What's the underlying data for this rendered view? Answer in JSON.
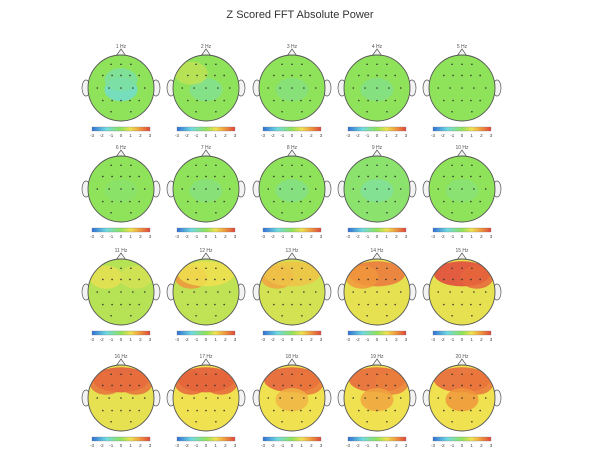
{
  "figure": {
    "title": "Z Scored FFT Absolute Power"
  },
  "chart_data": {
    "type": "heatmap",
    "title": "Z Scored FFT Absolute Power",
    "colorbar_ticks": [
      "-3",
      "-2",
      "-1",
      "0",
      "1",
      "2",
      "3"
    ],
    "colorbar_range": [
      -3,
      3
    ],
    "colors": {
      "low": "#2f6fd8",
      "mid": "#8fe35a",
      "high": "#e0453c",
      "head_outline": "#555555"
    },
    "maps": [
      {
        "label": "1 Hz",
        "base": 0.0,
        "blobs": [
          {
            "region": "center",
            "z": -1.3
          },
          {
            "region": "upper-center",
            "z": -0.8
          }
        ]
      },
      {
        "label": "2 Hz",
        "base": 0.0,
        "blobs": [
          {
            "region": "center",
            "z": -0.6
          },
          {
            "region": "front-left",
            "z": 0.5
          }
        ]
      },
      {
        "label": "3 Hz",
        "base": 0.0,
        "blobs": [
          {
            "region": "center",
            "z": -0.4
          }
        ]
      },
      {
        "label": "4 Hz",
        "base": 0.0,
        "blobs": [
          {
            "region": "center",
            "z": -0.5
          }
        ]
      },
      {
        "label": "5 Hz",
        "base": 0.0,
        "blobs": []
      },
      {
        "label": "6 Hz",
        "base": 0.0,
        "blobs": [
          {
            "region": "center",
            "z": -0.2
          }
        ]
      },
      {
        "label": "7 Hz",
        "base": 0.0,
        "blobs": [
          {
            "region": "center",
            "z": -0.4
          }
        ]
      },
      {
        "label": "8 Hz",
        "base": 0.0,
        "blobs": [
          {
            "region": "center",
            "z": -0.5
          }
        ]
      },
      {
        "label": "9 Hz",
        "base": -0.2,
        "blobs": [
          {
            "region": "center",
            "z": -0.7
          }
        ]
      },
      {
        "label": "10 Hz",
        "base": 0.0,
        "blobs": [
          {
            "region": "center",
            "z": -0.3
          }
        ]
      },
      {
        "label": "11 Hz",
        "base": 0.4,
        "blobs": [
          {
            "region": "front-left",
            "z": 0.9
          },
          {
            "region": "front-right",
            "z": 0.7
          }
        ]
      },
      {
        "label": "12 Hz",
        "base": 0.5,
        "blobs": [
          {
            "region": "front-left",
            "z": 2.0
          },
          {
            "region": "front",
            "z": 1.0
          }
        ]
      },
      {
        "label": "13 Hz",
        "base": 0.7,
        "blobs": [
          {
            "region": "front-left",
            "z": 1.8
          },
          {
            "region": "front",
            "z": 1.4
          }
        ]
      },
      {
        "label": "14 Hz",
        "base": 0.9,
        "blobs": [
          {
            "region": "front",
            "z": 2.4
          },
          {
            "region": "front-left",
            "z": 2.0
          }
        ]
      },
      {
        "label": "15 Hz",
        "base": 0.9,
        "blobs": [
          {
            "region": "front",
            "z": 3.0
          },
          {
            "region": "front-right",
            "z": 2.6
          }
        ]
      },
      {
        "label": "16 Hz",
        "base": 0.9,
        "blobs": [
          {
            "region": "front",
            "z": 2.8
          },
          {
            "region": "front-left",
            "z": 2.5
          },
          {
            "region": "front-right",
            "z": 2.5
          }
        ]
      },
      {
        "label": "17 Hz",
        "base": 1.0,
        "blobs": [
          {
            "region": "front",
            "z": 2.8
          },
          {
            "region": "front-left",
            "z": 2.6
          },
          {
            "region": "front-right",
            "z": 2.6
          }
        ]
      },
      {
        "label": "18 Hz",
        "base": 1.0,
        "blobs": [
          {
            "region": "front",
            "z": 2.7
          },
          {
            "region": "front-right",
            "z": 2.4
          },
          {
            "region": "center",
            "z": 1.6
          }
        ]
      },
      {
        "label": "19 Hz",
        "base": 1.0,
        "blobs": [
          {
            "region": "front",
            "z": 2.6
          },
          {
            "region": "front-right",
            "z": 2.3
          },
          {
            "region": "center",
            "z": 1.8
          }
        ]
      },
      {
        "label": "20 Hz",
        "base": 1.0,
        "blobs": [
          {
            "region": "front",
            "z": 2.6
          },
          {
            "region": "front-right",
            "z": 2.4
          },
          {
            "region": "center",
            "z": 2.0
          }
        ]
      }
    ]
  }
}
